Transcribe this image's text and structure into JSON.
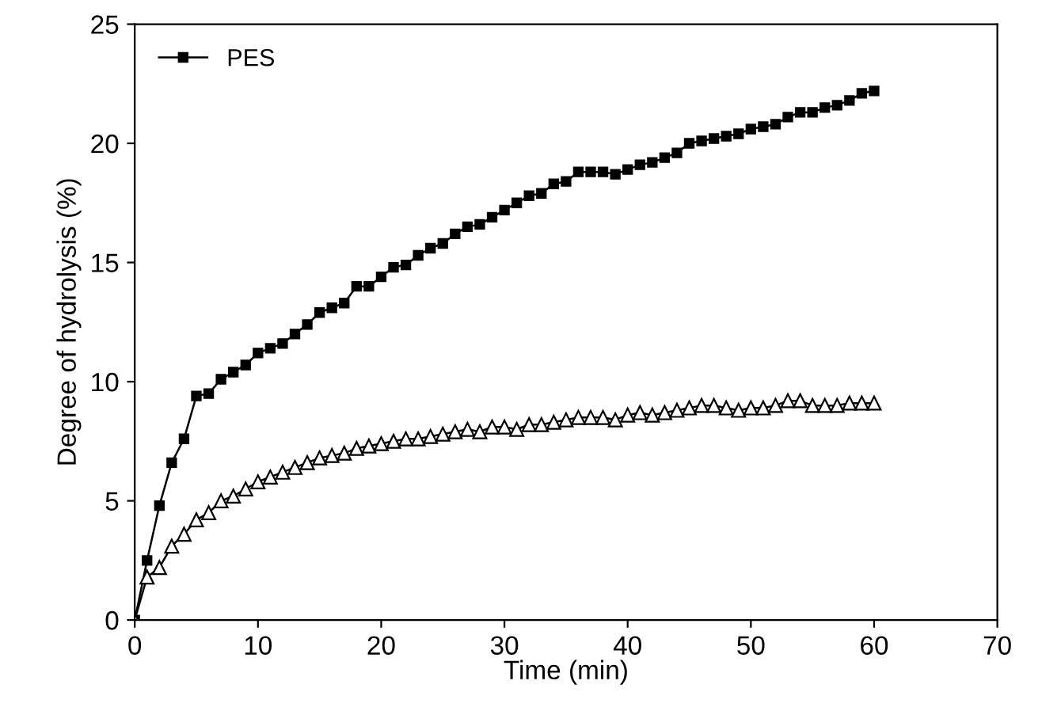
{
  "chart_data": {
    "type": "line",
    "xlabel": "Time (min)",
    "ylabel": "Degree of hydrolysis (%)",
    "xlim": [
      0,
      70
    ],
    "xticks": [
      0,
      10,
      20,
      30,
      40,
      50,
      60,
      70
    ],
    "ylim": [
      0,
      25
    ],
    "yticks": [
      0,
      5,
      10,
      15,
      20,
      25
    ],
    "grid": false,
    "legend": "top left",
    "line_style": "solid",
    "x": [
      0,
      1,
      2,
      3,
      4,
      5,
      6,
      7,
      8,
      9,
      10,
      11,
      12,
      13,
      14,
      15,
      16,
      17,
      18,
      19,
      20,
      21,
      22,
      23,
      24,
      25,
      26,
      27,
      28,
      29,
      30,
      31,
      32,
      33,
      34,
      35,
      36,
      37,
      38,
      39,
      40,
      41,
      42,
      43,
      44,
      45,
      46,
      47,
      48,
      49,
      50,
      51,
      52,
      53,
      54,
      55,
      56,
      57,
      58,
      59,
      60
    ],
    "series": [
      {
        "name": "PES",
        "color": "#000000",
        "marker": "square",
        "values": [
          0,
          2.5,
          4.8,
          6.6,
          7.6,
          9.4,
          9.5,
          10.1,
          10.4,
          10.7,
          11.2,
          11.4,
          11.6,
          12.0,
          12.4,
          12.9,
          13.1,
          13.3,
          14.0,
          14.0,
          14.4,
          14.8,
          14.9,
          15.3,
          15.6,
          15.8,
          16.2,
          16.5,
          16.6,
          16.9,
          17.2,
          17.5,
          17.8,
          17.9,
          18.3,
          18.4,
          18.8,
          18.8,
          18.8,
          18.7,
          18.9,
          19.1,
          19.2,
          19.4,
          19.6,
          20.0,
          20.1,
          20.2,
          20.3,
          20.4,
          20.6,
          20.7,
          20.8,
          21.1,
          21.3,
          21.3,
          21.5,
          21.6,
          21.8,
          22.1,
          22.2
        ]
      },
      {
        "color": "#000000",
        "marker": "triangle",
        "values": [
          0,
          1.8,
          2.2,
          3.1,
          3.6,
          4.2,
          4.5,
          5.0,
          5.2,
          5.5,
          5.8,
          6.0,
          6.2,
          6.4,
          6.6,
          6.8,
          6.9,
          7.0,
          7.2,
          7.3,
          7.4,
          7.5,
          7.6,
          7.6,
          7.7,
          7.8,
          7.9,
          8.0,
          7.9,
          8.1,
          8.1,
          8.0,
          8.2,
          8.2,
          8.3,
          8.4,
          8.5,
          8.5,
          8.5,
          8.4,
          8.6,
          8.7,
          8.6,
          8.7,
          8.8,
          8.9,
          9.0,
          9.0,
          8.9,
          8.8,
          8.9,
          8.9,
          9.0,
          9.2,
          9.2,
          9.0,
          9.0,
          9.0,
          9.1,
          9.1,
          9.1
        ]
      }
    ]
  }
}
